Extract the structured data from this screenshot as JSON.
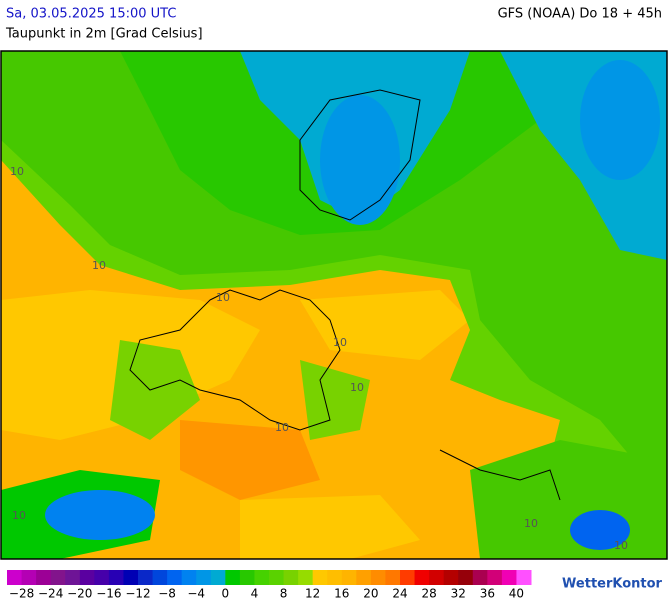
{
  "header": {
    "date": "Sa, 03.05.2025 15:00 UTC",
    "model": "GFS (NOAA) Do 18 + 45h",
    "parameter": "Taupunkt in 2m [Grad Celsius]"
  },
  "map": {
    "contour_labels": [
      "10",
      "10",
      "10",
      "10",
      "10",
      "10",
      "10",
      "10",
      "10"
    ]
  },
  "legend": {
    "colors": [
      "#cc00cc",
      "#b400b4",
      "#9c0096",
      "#82148c",
      "#6e1496",
      "#5a00a0",
      "#4600aa",
      "#2800b4",
      "#0000b4",
      "#0a28c8",
      "#0046dc",
      "#0064f0",
      "#0082f0",
      "#0096e6",
      "#00aad2",
      "#00c800",
      "#28c800",
      "#46d200",
      "#5ad200",
      "#78d200",
      "#96dc00",
      "#ffc800",
      "#ffbe00",
      "#ffb400",
      "#ffa000",
      "#ff8c00",
      "#ff7800",
      "#ff3c00",
      "#f00000",
      "#d20000",
      "#b40000",
      "#96000a",
      "#aa0050",
      "#d20078",
      "#f000b4",
      "#ff50ff"
    ],
    "ticks": [
      "−28",
      "−24",
      "−20",
      "−16",
      "−12",
      "−8",
      "−4",
      "0",
      "4",
      "8",
      "12",
      "16",
      "20",
      "24",
      "28",
      "32",
      "36",
      "40"
    ]
  },
  "logo": "WetterKontor"
}
